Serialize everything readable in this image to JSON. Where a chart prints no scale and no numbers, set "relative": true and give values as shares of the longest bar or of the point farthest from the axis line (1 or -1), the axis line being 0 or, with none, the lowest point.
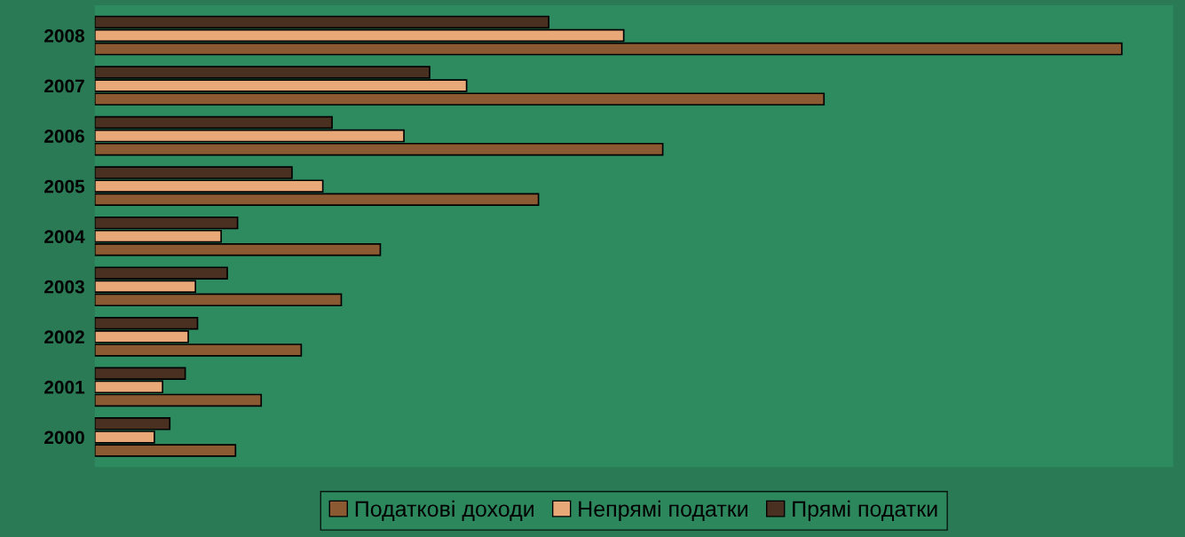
{
  "chart_data": {
    "type": "bar",
    "orientation": "horizontal",
    "relative": true,
    "legend": "bottom",
    "categories": [
      "2008",
      "2007",
      "2006",
      "2005",
      "2004",
      "2003",
      "2002",
      "2001",
      "2000"
    ],
    "series": [
      {
        "name": "Податкові доходи",
        "color": "#8b5a32",
        "values": [
          1,
          0.71,
          0.553,
          0.432,
          0.278,
          0.24,
          0.201,
          0.162,
          0.137
        ]
      },
      {
        "name": "Непрямі податки",
        "color": "#e8a878",
        "values": [
          0.515,
          0.362,
          0.301,
          0.222,
          0.123,
          0.098,
          0.091,
          0.066,
          0.058
        ]
      },
      {
        "name": "Прямі податки",
        "color": "#4a3020",
        "values": [
          0.442,
          0.326,
          0.231,
          0.192,
          0.139,
          0.129,
          0.1,
          0.088,
          0.073
        ]
      }
    ]
  }
}
